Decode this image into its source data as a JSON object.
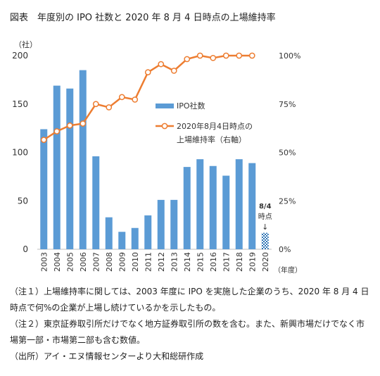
{
  "figure": {
    "title": "図表　年度別の IPO 社数と 2020 年 8 月 4 日時点の上場維持率"
  },
  "chart_data": {
    "type": "bar",
    "categories": [
      "2003",
      "2004",
      "2005",
      "2006",
      "2007",
      "2008",
      "2009",
      "2010",
      "2011",
      "2012",
      "2013",
      "2014",
      "2015",
      "2016",
      "2017",
      "2018",
      "2019",
      "2020"
    ],
    "series": [
      {
        "name": "IPO社数",
        "type": "bar",
        "axis": "left",
        "color": "#5b9bd5",
        "values": [
          124,
          169,
          166,
          185,
          96,
          33,
          18,
          22,
          35,
          51,
          51,
          85,
          93,
          86,
          76,
          93,
          89,
          17
        ],
        "pattern_last": true
      },
      {
        "name": "2020年8月4日時点の上場維持率（右軸）",
        "legend_lines": [
          "2020年8月4日時点の",
          "上場維持率（右軸）"
        ],
        "type": "line",
        "axis": "right",
        "color": "#ed7d31",
        "values": [
          56.5,
          60.9,
          63.9,
          64.9,
          75.0,
          73.3,
          78.6,
          77.3,
          91.4,
          95.6,
          92.2,
          98.2,
          100,
          98.8,
          100,
          100,
          100,
          null
        ]
      }
    ],
    "y_left": {
      "min": 0,
      "max": 200,
      "ticks": [
        0,
        50,
        100,
        150,
        200
      ],
      "unit_label": "（社）"
    },
    "y_right": {
      "min": 0,
      "max": 100,
      "ticks": [
        "0%",
        "25%",
        "50%",
        "75%",
        "100%"
      ]
    },
    "x_unit_label": "（年度）",
    "annotation": {
      "lines": [
        "8/4",
        "時点"
      ],
      "arrow": "↓"
    },
    "grid": false,
    "legend_position": "center-right"
  },
  "notes": [
    "（注１）上場維持率に関しては、2003 年度に IPO を実施した企業のうち、2020 年 8 月 4 日時点で何%の企業が上場し続けているかを示したもの。",
    "（注２）東京証券取引所だけでなく地方証券取引所の数を含む。また、新興市場だけでなく市場第一部・市場第二部も含む数値。",
    "（出所）アイ・エヌ情報センターより大和総研作成"
  ]
}
